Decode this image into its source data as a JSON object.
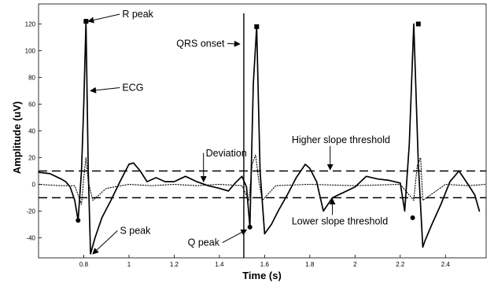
{
  "chart_data": {
    "type": "line",
    "title": "",
    "xlabel": "Time (s)",
    "ylabel": "Amplitude (uV)",
    "xlim": [
      0.6,
      2.58
    ],
    "ylim": [
      -55,
      135
    ],
    "x_ticks": [
      "0.8",
      "1",
      "1.2",
      "1.4",
      "1.6",
      "1.8",
      "2",
      "2.2",
      "2.4"
    ],
    "x_tick_values": [
      0.8,
      1.0,
      1.2,
      1.4,
      1.6,
      1.8,
      2.0,
      2.2,
      2.4
    ],
    "y_ticks": [
      "-40",
      "-20",
      "0",
      "20",
      "40",
      "60",
      "80",
      "100",
      "120"
    ],
    "y_tick_values": [
      -40,
      -20,
      0,
      20,
      40,
      60,
      80,
      100,
      120
    ],
    "grid": false,
    "series": [
      {
        "style": "solid",
        "x": [
          0.6,
          0.65,
          0.7,
          0.72,
          0.74,
          0.76,
          0.775,
          0.79,
          0.8,
          0.81,
          0.82,
          0.83,
          0.85,
          0.88,
          0.92,
          0.96,
          1.0,
          1.02,
          1.05,
          1.08,
          1.12,
          1.16,
          1.2,
          1.25,
          1.3,
          1.35,
          1.4,
          1.44,
          1.47,
          1.5,
          1.52,
          1.535,
          1.55,
          1.565,
          1.58,
          1.6,
          1.63,
          1.66,
          1.7,
          1.74,
          1.78,
          1.8,
          1.83,
          1.86,
          1.9,
          1.95,
          2.0,
          2.05,
          2.1,
          2.15,
          2.2,
          2.22,
          2.24,
          2.26,
          2.28,
          2.3,
          2.31,
          2.34,
          2.38,
          2.42,
          2.46,
          2.5,
          2.53,
          2.55
        ],
        "y": [
          9,
          8,
          4,
          2,
          -2,
          -12,
          -27,
          10,
          60,
          122,
          10,
          -52,
          -40,
          -25,
          -12,
          2,
          15,
          16,
          10,
          2,
          5,
          2,
          2,
          6,
          2,
          -1,
          -3,
          -5,
          1,
          6,
          -2,
          -32,
          75,
          118,
          10,
          -37,
          -30,
          -20,
          -8,
          5,
          15,
          12,
          2,
          -20,
          -10,
          -6,
          -2,
          6,
          4,
          3,
          1,
          -20,
          30,
          120,
          15,
          -47,
          -42,
          -30,
          -15,
          2,
          10,
          0,
          -8,
          -20
        ]
      },
      {
        "style": "dotted",
        "x": [
          0.6,
          0.7,
          0.76,
          0.79,
          0.8,
          0.81,
          0.82,
          0.84,
          0.9,
          1.0,
          1.1,
          1.2,
          1.3,
          1.4,
          1.5,
          1.53,
          1.545,
          1.56,
          1.575,
          1.59,
          1.65,
          1.8,
          2.0,
          2.2,
          2.26,
          2.275,
          2.29,
          2.3,
          2.4,
          2.5,
          2.58
        ],
        "y": [
          0,
          -1,
          -1,
          -15,
          5,
          20,
          2,
          -12,
          -3,
          0,
          -1,
          0,
          -1,
          0,
          -1,
          -12,
          15,
          22,
          2,
          -12,
          -1,
          0,
          -1,
          0,
          -12,
          14,
          20,
          -12,
          0,
          -1,
          0
        ]
      }
    ],
    "thresholds": [
      {
        "label": "Higher slope threshold",
        "y": 10
      },
      {
        "label": "Lower slope threshold",
        "y": -10
      }
    ],
    "markers": [
      {
        "x": 0.81,
        "y": 122
      },
      {
        "x": 0.775,
        "y": -27
      },
      {
        "x": 1.565,
        "y": 118
      },
      {
        "x": 1.535,
        "y": -32
      },
      {
        "x": 2.28,
        "y": 120
      },
      {
        "x": 2.255,
        "y": -25
      }
    ],
    "qrs_onset_x": 1.508,
    "annotations": [
      {
        "id": "r-peak",
        "text": "R peak",
        "tx": 0.97,
        "ty": 125,
        "ax": 0.82,
        "ay": 122
      },
      {
        "id": "ecg",
        "text": "ECG",
        "tx": 0.97,
        "ty": 70,
        "ax": 0.83,
        "ay": 70
      },
      {
        "id": "qrs-onset",
        "text": "QRS onset",
        "tx": 1.21,
        "ty": 103,
        "ax": 1.49,
        "ay": 105
      },
      {
        "id": "deviation",
        "text": "Deviation",
        "tx": 1.34,
        "ty": 21,
        "ax": 1.33,
        "ay": 2
      },
      {
        "id": "higher-threshold",
        "text": "Higher slope threshold",
        "tx": 1.72,
        "ty": 31,
        "ax": 1.89,
        "ay": 11
      },
      {
        "id": "lower-threshold",
        "text": "Lower slope threshold",
        "tx": 1.72,
        "ty": -30,
        "ax": 1.9,
        "ay": -11
      },
      {
        "id": "s-peak",
        "text": "S peak",
        "tx": 0.96,
        "ty": -37,
        "ax": 0.84,
        "ay": -52
      },
      {
        "id": "q-peak",
        "text": "Q peak",
        "tx": 1.26,
        "ty": -46,
        "ax": 1.52,
        "ay": -34
      }
    ]
  }
}
